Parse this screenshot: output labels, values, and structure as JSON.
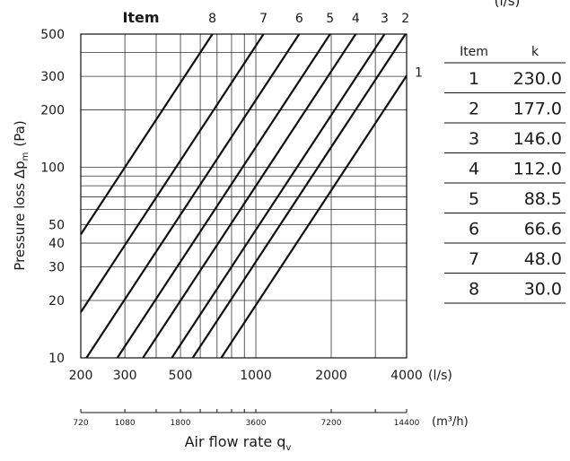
{
  "chart_data": {
    "type": "line",
    "x_scale": "log",
    "y_scale": "log",
    "xlim": [
      200,
      4000
    ],
    "ylim": [
      10,
      500
    ],
    "grid": true,
    "ylabel_main": "Pressure loss Δp",
    "ylabel_sub": "m",
    "ylabel_unit": "(Pa)",
    "xlabel_main": "Air flow rate q",
    "xlabel_sub": "v",
    "x_unit": "(l/s)",
    "x2_unit": "(m³/h)",
    "top_header": "Item",
    "x_ticks": [
      {
        "value": 200,
        "label": "200"
      },
      {
        "value": 300,
        "label": "300"
      },
      {
        "value": 500,
        "label": "500"
      },
      {
        "value": 1000,
        "label": "1000"
      },
      {
        "value": 2000,
        "label": "2000"
      },
      {
        "value": 4000,
        "label": "4000"
      }
    ],
    "y_ticks": [
      {
        "value": 10,
        "label": "10"
      },
      {
        "value": 20,
        "label": "20"
      },
      {
        "value": 30,
        "label": "30"
      },
      {
        "value": 40,
        "label": "40"
      },
      {
        "value": 50,
        "label": "50"
      },
      {
        "value": 100,
        "label": "100"
      },
      {
        "value": 200,
        "label": "200"
      },
      {
        "value": 300,
        "label": "300"
      },
      {
        "value": 500,
        "label": "500"
      }
    ],
    "x2_ticks": [
      {
        "value": 720,
        "label": "720"
      },
      {
        "value": 1080,
        "label": "1080"
      },
      {
        "value": 1800,
        "label": "1800"
      },
      {
        "value": 3600,
        "label": "3600"
      },
      {
        "value": 7200,
        "label": "7200"
      },
      {
        "value": 14400,
        "label": "14400"
      }
    ],
    "series": [
      {
        "name": "1",
        "k": 230.0
      },
      {
        "name": "2",
        "k": 177.0
      },
      {
        "name": "3",
        "k": 146.0
      },
      {
        "name": "4",
        "k": 112.0
      },
      {
        "name": "5",
        "k": 88.5
      },
      {
        "name": "6",
        "k": 66.6
      },
      {
        "name": "7",
        "k": 48.0
      },
      {
        "name": "8",
        "k": 30.0
      }
    ]
  },
  "table": {
    "unit_header": "(l/s)",
    "col_item": "Item",
    "col_k": "k",
    "rows": [
      {
        "item": "1",
        "k": "230.0"
      },
      {
        "item": "2",
        "k": "177.0"
      },
      {
        "item": "3",
        "k": "146.0"
      },
      {
        "item": "4",
        "k": "112.0"
      },
      {
        "item": "5",
        "k": "88.5"
      },
      {
        "item": "6",
        "k": "66.6"
      },
      {
        "item": "7",
        "k": "48.0"
      },
      {
        "item": "8",
        "k": "30.0"
      }
    ]
  }
}
